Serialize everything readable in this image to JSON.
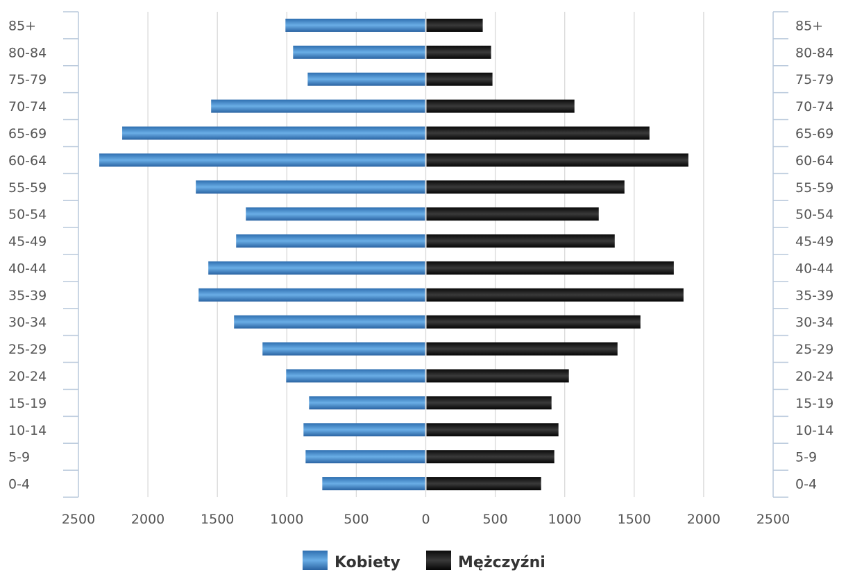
{
  "chart_data": {
    "type": "bar",
    "orientation": "horizontal",
    "layout": "population-pyramid",
    "title": "",
    "xlabel": "",
    "ylabel": "",
    "categories": [
      "85+",
      "80-84",
      "75-79",
      "70-74",
      "65-69",
      "60-64",
      "55-59",
      "50-54",
      "45-49",
      "40-44",
      "35-39",
      "30-34",
      "25-29",
      "20-24",
      "15-19",
      "10-14",
      "5-9",
      "0-4"
    ],
    "series": [
      {
        "name": "Kobiety",
        "color": "#3b7dc4",
        "side": "left",
        "values": [
          1010,
          955,
          850,
          1545,
          2185,
          2350,
          1655,
          1295,
          1365,
          1565,
          1635,
          1380,
          1175,
          1005,
          840,
          880,
          865,
          745
        ]
      },
      {
        "name": "Mężczyźni",
        "color": "#1a1a1a",
        "side": "right",
        "values": [
          410,
          470,
          480,
          1070,
          1610,
          1890,
          1430,
          1245,
          1360,
          1785,
          1855,
          1545,
          1380,
          1030,
          905,
          955,
          925,
          830
        ]
      }
    ],
    "xlim": [
      -2500,
      2500
    ],
    "x_ticks": [
      "2500",
      "2000",
      "1500",
      "1000",
      "500",
      "0",
      "500",
      "1000",
      "1500",
      "2000",
      "2500"
    ],
    "grid": true,
    "legend_position": "bottom"
  }
}
